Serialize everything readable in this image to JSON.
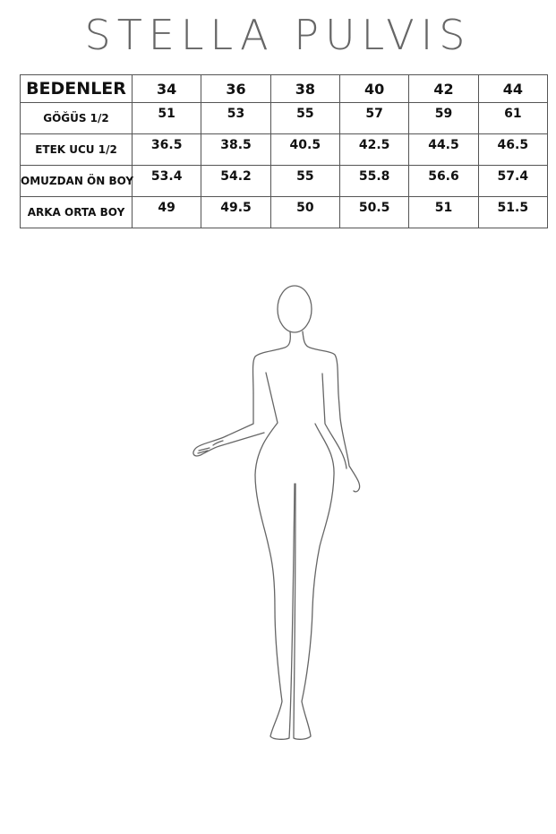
{
  "brand": "STELLA PULVIS",
  "table": {
    "header_label": "BEDENLER",
    "sizes": [
      "34",
      "36",
      "38",
      "40",
      "42",
      "44"
    ],
    "rows": [
      {
        "label": "GÖĞÜS 1/2",
        "values": [
          "51",
          "53",
          "55",
          "57",
          "59",
          "61"
        ]
      },
      {
        "label": "ETEK UCU 1/2",
        "values": [
          "36.5",
          "38.5",
          "40.5",
          "42.5",
          "44.5",
          "46.5"
        ]
      },
      {
        "label": "OMUZDAN ÖN BOY",
        "values": [
          "53.4",
          "54.2",
          "55",
          "55.8",
          "56.6",
          "57.4"
        ]
      },
      {
        "label": "ARKA ORTA BOY",
        "values": [
          "49",
          "49.5",
          "50",
          "50.5",
          "51",
          "51.5"
        ]
      }
    ]
  }
}
